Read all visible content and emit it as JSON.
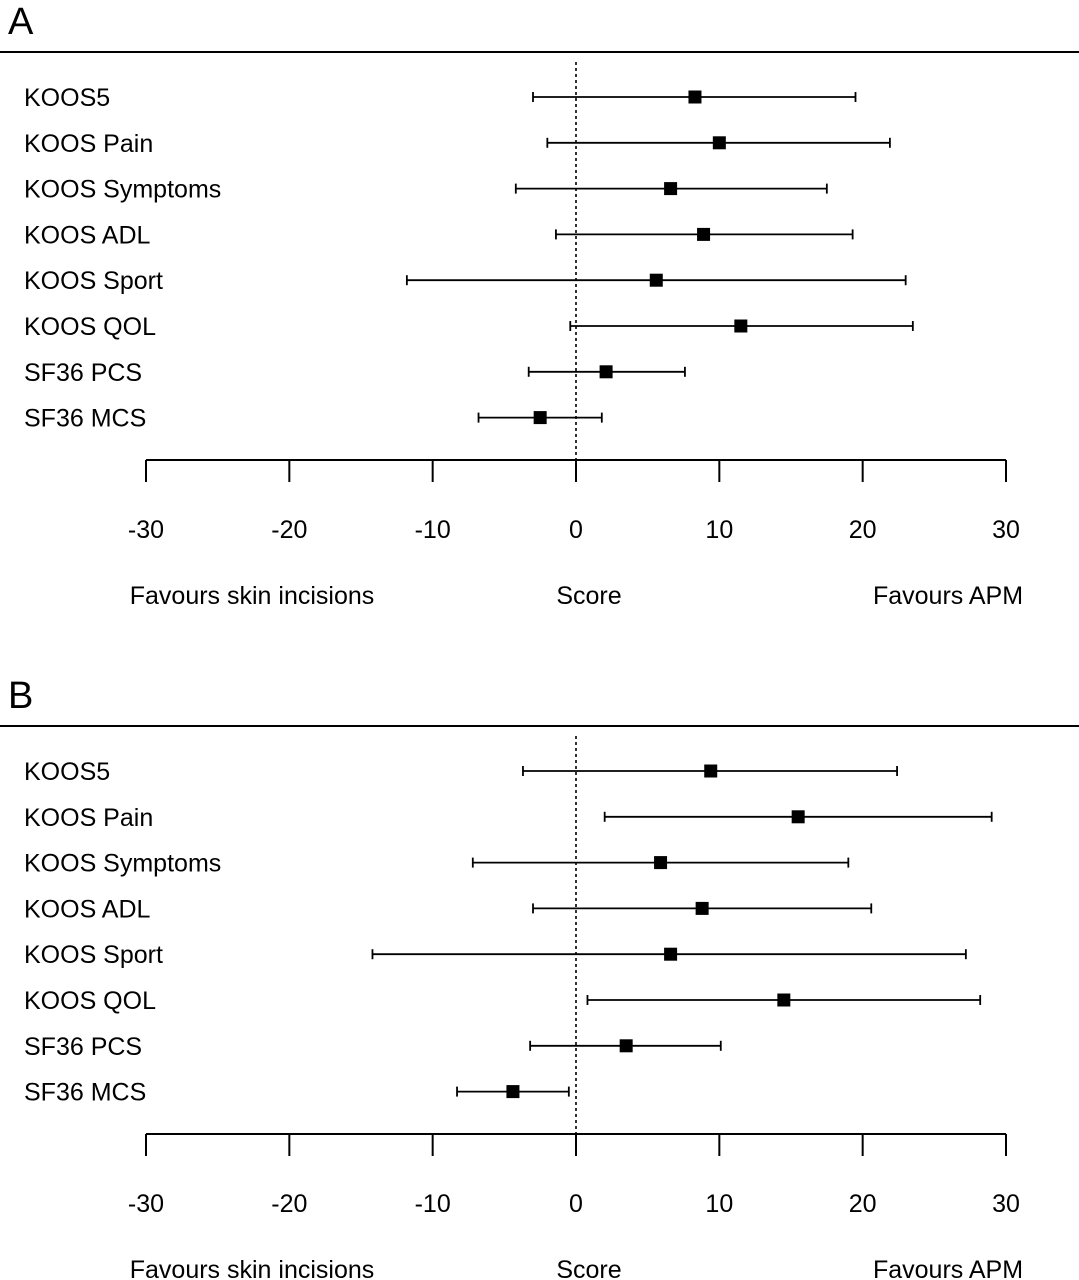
{
  "chart_data": [
    {
      "panel_label": "A",
      "type": "forest",
      "categories": [
        "KOOS5",
        "KOOS Pain",
        "KOOS Symptoms",
        "KOOS ADL",
        "KOOS Sport",
        "KOOS QOL",
        "SF36 PCS",
        "SF36 MCS"
      ],
      "estimates": [
        8.3,
        10.0,
        6.6,
        8.9,
        5.6,
        11.5,
        2.1,
        -2.5
      ],
      "lower": [
        -3.0,
        -2.0,
        -4.2,
        -1.4,
        -11.8,
        -0.4,
        -3.3,
        -6.8
      ],
      "upper": [
        19.5,
        21.9,
        17.5,
        19.3,
        23.0,
        23.5,
        7.6,
        1.8
      ],
      "xlim": [
        -30,
        30
      ],
      "xticks": [
        "-30",
        "-20",
        "-10",
        "0",
        "10",
        "20",
        "30"
      ],
      "xlabel": "Score",
      "left_label": "Favours skin incisions",
      "right_label": "Favours APM",
      "reference_line": 0
    },
    {
      "panel_label": "B",
      "type": "forest",
      "categories": [
        "KOOS5",
        "KOOS Pain",
        "KOOS Symptoms",
        "KOOS ADL",
        "KOOS Sport",
        "KOOS QOL",
        "SF36 PCS",
        "SF36 MCS"
      ],
      "estimates": [
        9.4,
        15.5,
        5.9,
        8.8,
        6.6,
        14.5,
        3.5,
        -4.4
      ],
      "lower": [
        -3.7,
        2.0,
        -7.2,
        -3.0,
        -14.2,
        0.8,
        -3.2,
        -8.3
      ],
      "upper": [
        22.4,
        29.0,
        19.0,
        20.6,
        27.2,
        28.2,
        10.1,
        -0.5
      ],
      "xlim": [
        -30,
        30
      ],
      "xticks": [
        "-30",
        "-20",
        "-10",
        "0",
        "10",
        "20",
        "30"
      ],
      "xlabel": "Score",
      "left_label": "Favours skin incisions",
      "right_label": "Favours APM",
      "reference_line": 0
    }
  ]
}
